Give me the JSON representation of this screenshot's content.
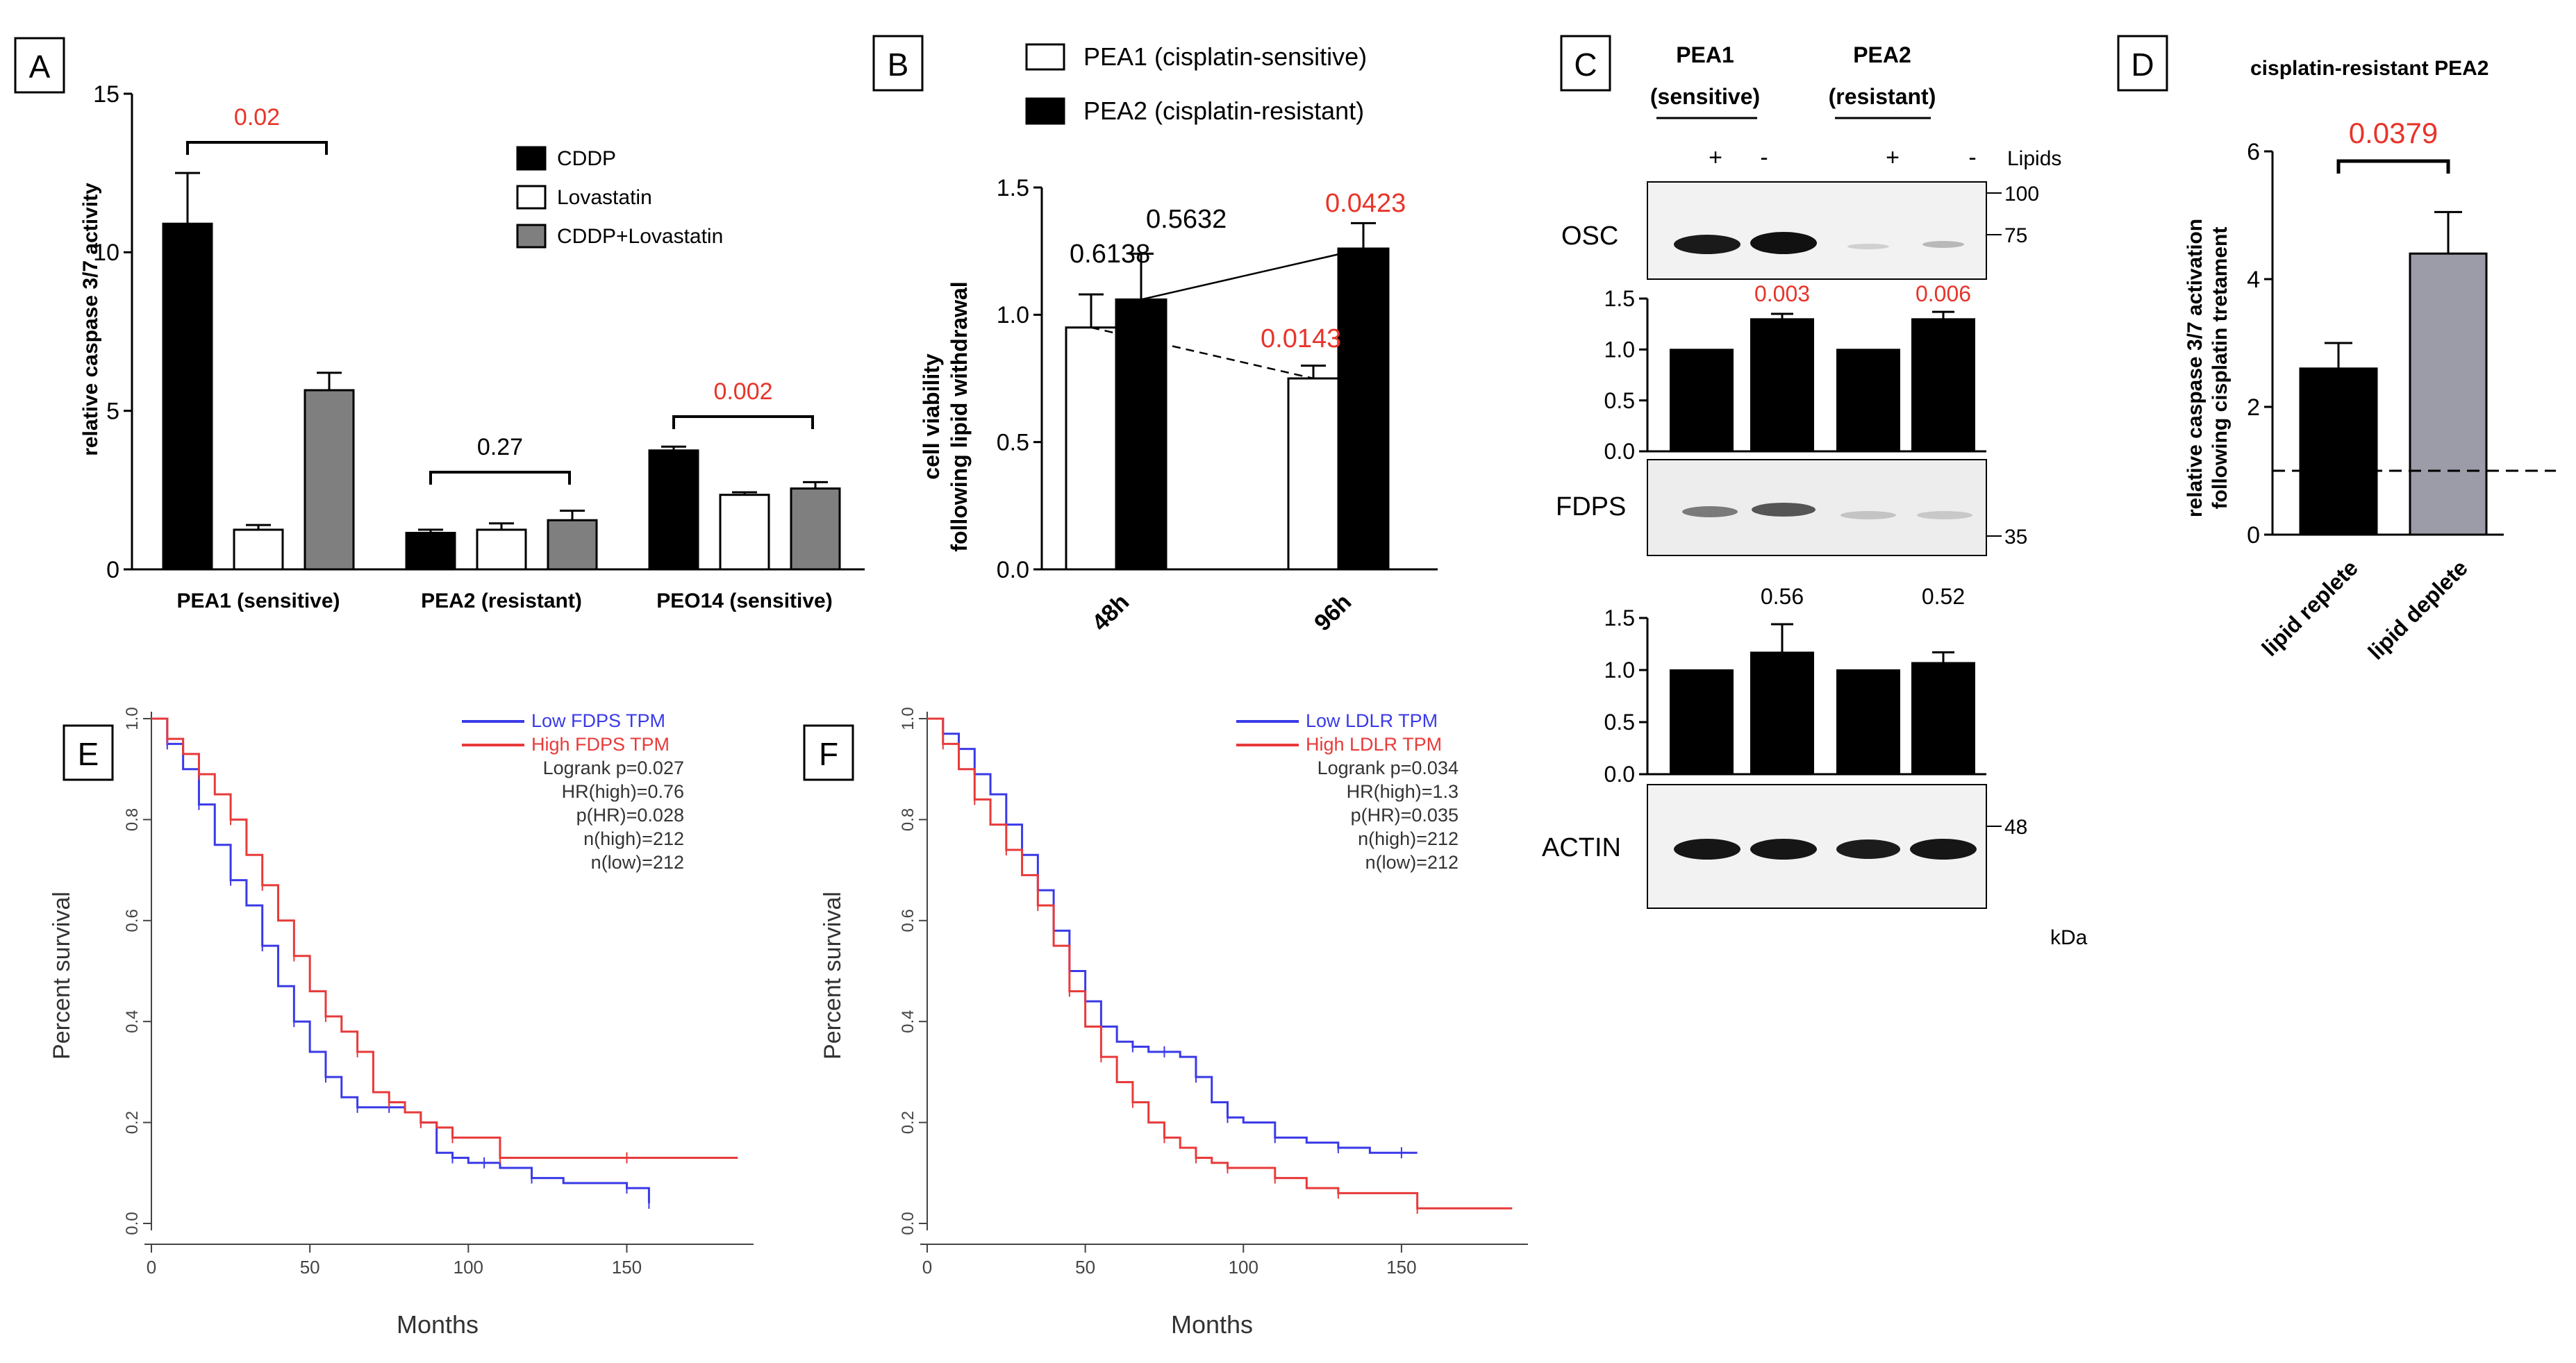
{
  "chart_data": [
    {
      "id": "A",
      "type": "bar",
      "panel_label": "A",
      "ylabel": "relative caspase 3/7 activity",
      "ylim": [
        0,
        15
      ],
      "yticks": [
        0,
        5,
        10,
        15
      ],
      "categories": [
        "PEA1 (sensitive)",
        "PEA2 (resistant)",
        "PEO14 (sensitive)"
      ],
      "series": [
        {
          "name": "CDDP",
          "color": "#000000",
          "values": [
            10.9,
            1.15,
            3.75
          ],
          "errors": [
            1.6,
            0.1,
            0.12
          ]
        },
        {
          "name": "Lovastatin",
          "color": "#ffffff",
          "values": [
            1.25,
            1.25,
            2.35
          ],
          "errors": [
            0.15,
            0.2,
            0.08
          ]
        },
        {
          "name": "CDDP+Lovastatin",
          "color": "#7f7f7f",
          "values": [
            5.65,
            1.55,
            2.55
          ],
          "errors": [
            0.55,
            0.3,
            0.2
          ]
        }
      ],
      "legend": [
        "CDDP",
        "Lovastatin",
        "CDDP+Lovastatin"
      ],
      "annotations": [
        {
          "text": "0.02",
          "color": "red",
          "group": 0
        },
        {
          "text": "0.27",
          "color": "black",
          "group": 1
        },
        {
          "text": "0.002",
          "color": "red",
          "group": 2
        }
      ]
    },
    {
      "id": "B",
      "type": "bar",
      "panel_label": "B",
      "ylabel_lines": [
        "cell viability",
        "following lipid withdrawal"
      ],
      "ylim": [
        0,
        1.5
      ],
      "yticks": [
        "0.0",
        "0.5",
        "1.0",
        "1.5"
      ],
      "categories": [
        "48h",
        "96h"
      ],
      "series": [
        {
          "name": "PEA1 (cisplatin-sensitive)",
          "color": "#ffffff",
          "values": [
            0.95,
            0.75
          ],
          "errors": [
            0.13,
            0.05
          ]
        },
        {
          "name": "PEA2 (cisplatin-resistant)",
          "color": "#000000",
          "values": [
            1.06,
            1.26
          ],
          "errors": [
            0.18,
            0.1
          ]
        }
      ],
      "legend": [
        "PEA1 (cisplatin-sensitive)",
        "PEA2 (cisplatin-resistant)"
      ],
      "annotations": [
        {
          "text": "0.6138",
          "color": "black"
        },
        {
          "text": "0.5632",
          "color": "black"
        },
        {
          "text": "0.0143",
          "color": "red"
        },
        {
          "text": "0.0423",
          "color": "red"
        }
      ]
    },
    {
      "id": "C1",
      "type": "bar",
      "panel": "C (OSC quantification)",
      "ylim": [
        0,
        1.5
      ],
      "yticks": [
        "0.0",
        "0.5",
        "1.0",
        "1.5"
      ],
      "categories": [
        "PEA1 +",
        "PEA1 -",
        "PEA2 +",
        "PEA2 -"
      ],
      "values": [
        1.0,
        1.3,
        1.0,
        1.3
      ],
      "errors": [
        0,
        0.05,
        0,
        0.07
      ],
      "annotations": [
        "",
        "0.003",
        "",
        "0.006"
      ]
    },
    {
      "id": "C2",
      "type": "bar",
      "panel": "C (FDPS quantification)",
      "ylim": [
        0,
        1.5
      ],
      "yticks": [
        "0.0",
        "0.5",
        "1.0",
        "1.5"
      ],
      "categories": [
        "PEA1 +",
        "PEA1 -",
        "PEA2 +",
        "PEA2 -"
      ],
      "values": [
        1.0,
        1.17,
        1.0,
        1.07
      ],
      "errors": [
        0,
        0.27,
        0,
        0.1
      ],
      "annotations": [
        "",
        "0.56",
        "",
        "0.52"
      ]
    },
    {
      "id": "D",
      "type": "bar",
      "panel_label": "D",
      "title": "cisplatin-resistant PEA2",
      "ylabel_lines": [
        "relative caspase 3/7 activation",
        "following cisplatin tretament"
      ],
      "ylim": [
        0,
        6
      ],
      "yticks": [
        0,
        2,
        4,
        6
      ],
      "categories": [
        "lipid replete",
        "lipid deplete"
      ],
      "values": [
        2.6,
        4.4
      ],
      "errors": [
        0.4,
        0.65
      ],
      "colors": [
        "#000000",
        "#9c9ca8"
      ],
      "reference_line": 1,
      "annotation": "0.0379"
    },
    {
      "id": "E",
      "type": "line",
      "panel_label": "E",
      "xlabel": "Months",
      "ylabel": "Percent survival",
      "xlim": [
        0,
        190
      ],
      "ylim": [
        0,
        1.0
      ],
      "xticks": [
        0,
        50,
        100,
        150
      ],
      "yticks": [
        "0.0",
        "0.2",
        "0.4",
        "0.6",
        "0.8",
        "1.0"
      ],
      "legend": [
        "Low FDPS TPM",
        "High FDPS TPM"
      ],
      "stats": [
        "Logrank p=0.027",
        "HR(high)=0.76",
        "p(HR)=0.028",
        "n(high)=212",
        "n(low)=212"
      ],
      "series": [
        {
          "name": "Low FDPS TPM",
          "color": "#3a3ae8",
          "x": [
            0,
            5,
            10,
            15,
            20,
            25,
            30,
            35,
            40,
            45,
            50,
            55,
            60,
            65,
            70,
            75,
            80,
            85,
            90,
            95,
            100,
            105,
            110,
            120,
            130,
            150,
            155,
            157
          ],
          "y": [
            1.0,
            0.95,
            0.9,
            0.83,
            0.75,
            0.68,
            0.63,
            0.55,
            0.47,
            0.4,
            0.34,
            0.29,
            0.25,
            0.23,
            0.23,
            0.23,
            0.22,
            0.2,
            0.14,
            0.13,
            0.12,
            0.12,
            0.11,
            0.09,
            0.08,
            0.07,
            0.07,
            0.04
          ]
        },
        {
          "name": "High FDPS TPM",
          "color": "#e83a3a",
          "x": [
            0,
            5,
            10,
            15,
            20,
            25,
            30,
            35,
            40,
            45,
            50,
            55,
            60,
            65,
            70,
            75,
            80,
            85,
            90,
            95,
            100,
            110,
            120,
            150,
            185
          ],
          "y": [
            1.0,
            0.96,
            0.93,
            0.89,
            0.85,
            0.8,
            0.73,
            0.67,
            0.6,
            0.53,
            0.46,
            0.41,
            0.38,
            0.34,
            0.26,
            0.24,
            0.22,
            0.2,
            0.19,
            0.17,
            0.17,
            0.13,
            0.13,
            0.13,
            0.13
          ]
        }
      ]
    },
    {
      "id": "F",
      "type": "line",
      "panel_label": "F",
      "xlabel": "Months",
      "ylabel": "Percent survival",
      "xlim": [
        0,
        190
      ],
      "ylim": [
        0,
        1.0
      ],
      "xticks": [
        0,
        50,
        100,
        150
      ],
      "yticks": [
        "0.0",
        "0.2",
        "0.4",
        "0.6",
        "0.8",
        "1.0"
      ],
      "legend": [
        "Low LDLR TPM",
        "High LDLR TPM"
      ],
      "stats": [
        "Logrank p=0.034",
        "HR(high)=1.3",
        "p(HR)=0.035",
        "n(high)=212",
        "n(low)=212"
      ],
      "series": [
        {
          "name": "Low LDLR TPM",
          "color": "#3a3ae8",
          "x": [
            0,
            5,
            10,
            15,
            20,
            25,
            30,
            35,
            40,
            45,
            50,
            55,
            60,
            65,
            70,
            75,
            80,
            85,
            90,
            95,
            100,
            110,
            120,
            130,
            140,
            150,
            155
          ],
          "y": [
            1.0,
            0.97,
            0.94,
            0.89,
            0.85,
            0.79,
            0.73,
            0.66,
            0.58,
            0.5,
            0.44,
            0.39,
            0.36,
            0.35,
            0.34,
            0.34,
            0.33,
            0.29,
            0.24,
            0.21,
            0.2,
            0.17,
            0.16,
            0.15,
            0.14,
            0.14,
            0.14
          ]
        },
        {
          "name": "High LDLR TPM",
          "color": "#e83a3a",
          "x": [
            0,
            5,
            10,
            15,
            20,
            25,
            30,
            35,
            40,
            45,
            50,
            55,
            60,
            65,
            70,
            75,
            80,
            85,
            90,
            95,
            100,
            110,
            120,
            130,
            150,
            155,
            185
          ],
          "y": [
            1.0,
            0.95,
            0.9,
            0.84,
            0.79,
            0.74,
            0.69,
            0.63,
            0.55,
            0.46,
            0.39,
            0.33,
            0.28,
            0.24,
            0.2,
            0.17,
            0.15,
            0.13,
            0.12,
            0.11,
            0.11,
            0.09,
            0.07,
            0.06,
            0.06,
            0.03,
            0.03
          ]
        }
      ]
    }
  ],
  "blot": {
    "header_pea1": "PEA1",
    "header_pea1_sub": "(sensitive)",
    "header_pea2": "PEA2",
    "header_pea2_sub": "(resistant)",
    "lipids_label": "Lipids",
    "lane_signs": [
      "+",
      "-",
      "+",
      "-"
    ],
    "osc_label": "OSC",
    "fdps_label": "FDPS",
    "actin_label": "ACTIN",
    "marker_100": "100",
    "marker_75": "75",
    "marker_35": "35",
    "marker_48": "48",
    "kda_label": "kDa"
  },
  "panel_c_label": "C"
}
